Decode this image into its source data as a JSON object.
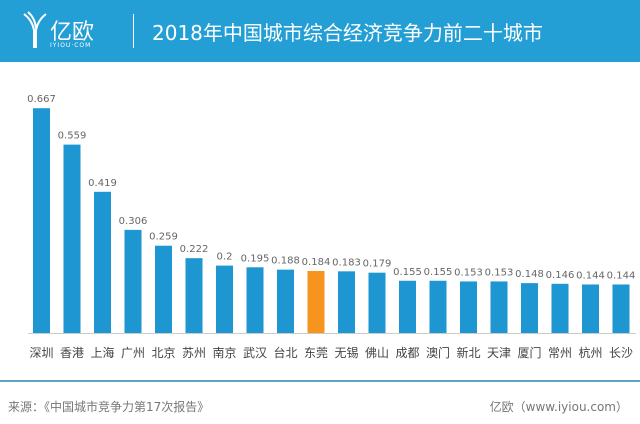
{
  "header": {
    "logo_text": "亿欧",
    "logo_sub": "IYIOU·COM",
    "title": "2018年中国城市综合经济竞争力前二十城市"
  },
  "colors": {
    "bar": "#1e96d2",
    "highlight": "#f7941d",
    "header": "#239fd5"
  },
  "chart_data": {
    "type": "bar",
    "title": "2018年中国城市综合经济竞争力前二十城市",
    "categories": [
      "深圳",
      "香港",
      "上海",
      "广州",
      "北京",
      "苏州",
      "南京",
      "武汉",
      "台北",
      "东莞",
      "无锡",
      "佛山",
      "成都",
      "澳门",
      "新北",
      "天津",
      "厦门",
      "常州",
      "杭州",
      "长沙"
    ],
    "values": [
      0.667,
      0.559,
      0.419,
      0.306,
      0.259,
      0.222,
      0.2,
      0.195,
      0.188,
      0.184,
      0.183,
      0.179,
      0.155,
      0.155,
      0.153,
      0.153,
      0.148,
      0.146,
      0.144,
      0.144
    ],
    "labels": [
      "0.667",
      "0.559",
      "0.419",
      "0.306",
      "0.259",
      "0.222",
      "0.2",
      "0.195",
      "0.188",
      "0.184",
      "0.183",
      "0.179",
      "0.155",
      "0.155",
      "0.153",
      "0.153",
      "0.148",
      "0.146",
      "0.144",
      "0.144"
    ],
    "highlight_index": 9,
    "ylim": [
      0,
      0.7
    ],
    "grid": false
  },
  "footer": {
    "source": "来源：《中国城市竞争力第17次报告》",
    "credit": "亿欧（www.iyiou.com）"
  }
}
